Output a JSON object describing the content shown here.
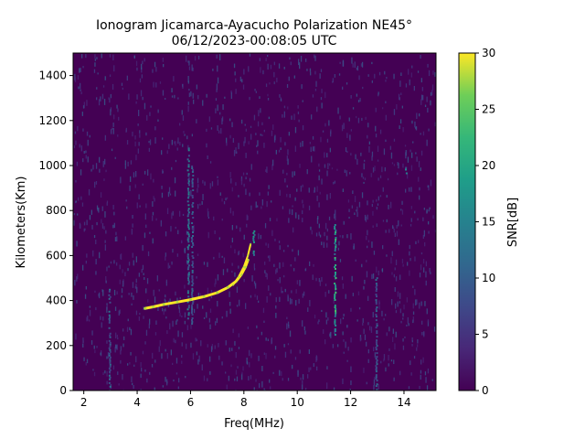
{
  "chart_data": {
    "type": "heatmap",
    "title_line1": "Ionogram Jicamarca-Ayacucho Polarization NE45°",
    "title_line2": "06/12/2023-00:08:05 UTC",
    "xlabel": "Freq(MHz)",
    "ylabel": "Kilometers(Km)",
    "xlim": [
      1.6,
      15.2
    ],
    "ylim": [
      0,
      1500
    ],
    "xticks": [
      2,
      4,
      6,
      8,
      10,
      12,
      14
    ],
    "yticks": [
      0,
      200,
      400,
      600,
      800,
      1000,
      1200,
      1400
    ],
    "colorbar": {
      "label": "SNR[dB]",
      "range": [
        0,
        30
      ],
      "ticks": [
        0,
        5,
        10,
        15,
        20,
        25,
        30
      ],
      "colormap": "viridis"
    },
    "trace_primary": {
      "x": [
        4.3,
        4.6,
        5.0,
        5.5,
        6.0,
        6.5,
        7.0,
        7.4,
        7.7,
        7.9,
        8.05,
        8.15
      ],
      "y": [
        365,
        372,
        383,
        393,
        404,
        417,
        435,
        458,
        485,
        515,
        548,
        580
      ]
    },
    "trace_secondary": {
      "x": [
        7.6,
        7.8,
        8.0,
        8.15,
        8.25
      ],
      "y": [
        470,
        505,
        550,
        600,
        650
      ]
    },
    "vertical_bands": [
      {
        "freq": 2.95,
        "y_range": [
          0,
          460
        ],
        "snr": 12
      },
      {
        "freq": 5.9,
        "y_range": [
          300,
          1080
        ],
        "snr": 15
      },
      {
        "freq": 6.05,
        "y_range": [
          300,
          1000
        ],
        "snr": 11
      },
      {
        "freq": 8.35,
        "y_range": [
          600,
          720
        ],
        "snr": 20
      },
      {
        "freq": 11.4,
        "y_range": [
          250,
          740
        ],
        "snr": 22
      },
      {
        "freq": 12.95,
        "y_range": [
          0,
          520
        ],
        "snr": 12
      },
      {
        "freq": 14.05,
        "y_range": [
          960,
          1010
        ],
        "snr": 15
      }
    ]
  }
}
